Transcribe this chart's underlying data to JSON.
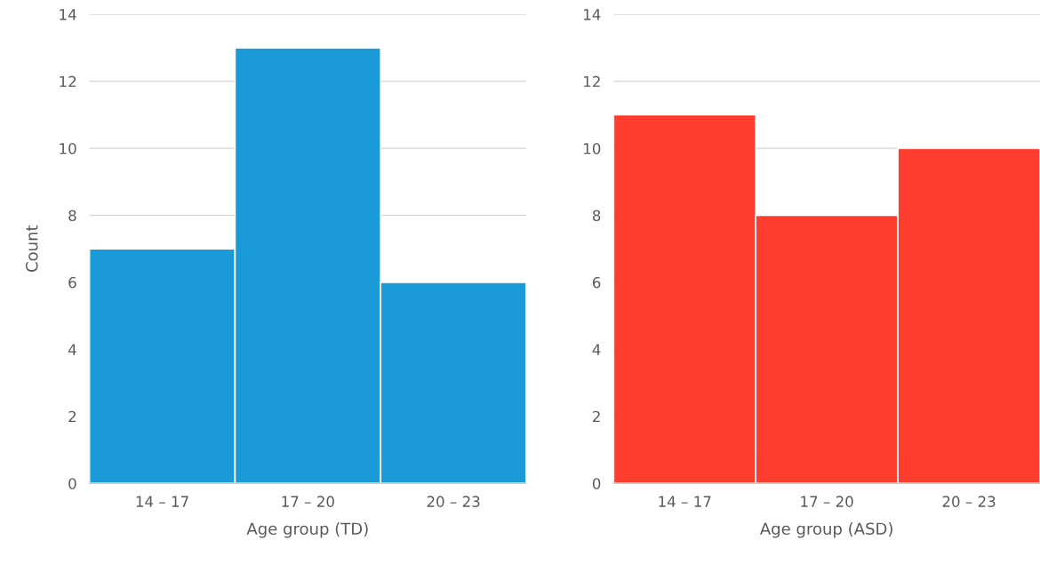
{
  "chart_data": [
    {
      "type": "bar",
      "xlabel": "Age group (TD)",
      "ylabel": "Count",
      "categories": [
        "14 – 17",
        "17 – 20",
        "20 – 23"
      ],
      "series": [
        {
          "color": "#1a9ad6",
          "values": [
            7,
            13,
            6
          ]
        }
      ],
      "ylim": [
        0,
        14
      ],
      "yticks": [
        0,
        2,
        4,
        6,
        8,
        10,
        12,
        14
      ],
      "grid": "y"
    },
    {
      "type": "bar",
      "xlabel": "Age group (ASD)",
      "categories": [
        "14 – 17",
        "17 – 20",
        "20 – 23"
      ],
      "series": [
        {
          "color": "#ff3d2e",
          "values": [
            11,
            8,
            10
          ]
        }
      ],
      "ylim": [
        0,
        14
      ],
      "yticks": [
        0,
        2,
        4,
        6,
        8,
        10,
        12,
        14
      ],
      "grid": "y"
    }
  ]
}
